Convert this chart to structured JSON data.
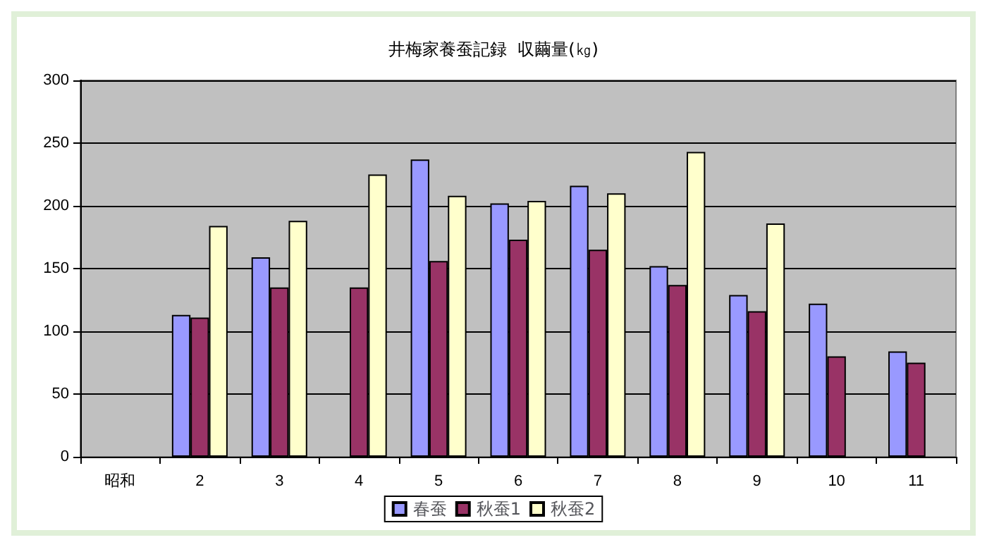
{
  "chart_data": {
    "type": "bar",
    "title": "井梅家養蚕記録  収繭量(㎏)",
    "categories": [
      "昭和",
      "2",
      "3",
      "4",
      "5",
      "6",
      "7",
      "8",
      "9",
      "10",
      "11"
    ],
    "series": [
      {
        "name": "春蚕",
        "color": "#9999ff",
        "values": [
          null,
          113,
          159,
          null,
          237,
          202,
          216,
          152,
          129,
          122,
          84
        ]
      },
      {
        "name": "秋蚕1",
        "color": "#993366",
        "values": [
          null,
          111,
          135,
          135,
          156,
          173,
          165,
          137,
          116,
          80,
          75
        ]
      },
      {
        "name": "秋蚕2",
        "color": "#ffffcc",
        "values": [
          null,
          184,
          188,
          225,
          208,
          204,
          210,
          243,
          186,
          null,
          null
        ]
      }
    ],
    "ylim": [
      0,
      300
    ],
    "yticks": [
      0,
      50,
      100,
      150,
      200,
      250,
      300
    ],
    "grid": "y",
    "legend": "bottom"
  }
}
